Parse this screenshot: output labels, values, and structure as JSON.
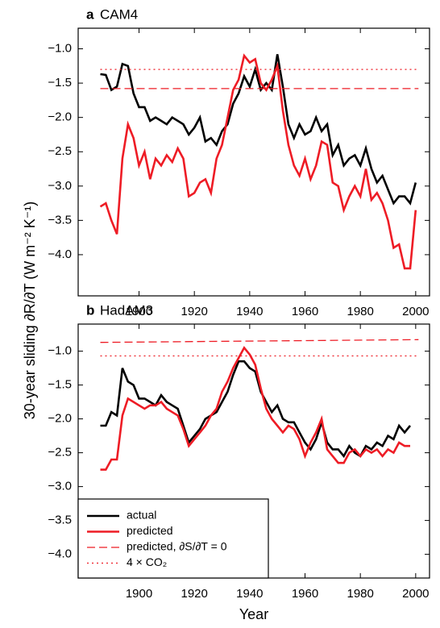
{
  "ylabel": "30-year sliding ∂R/∂T (W m⁻² K⁻¹)",
  "chart_data": [
    {
      "type": "line",
      "panel": "a",
      "title": "CAM4",
      "xlim": [
        1878,
        2005
      ],
      "xticks": [
        1900,
        1920,
        1940,
        1960,
        1980,
        2000
      ],
      "ylim": [
        -4.6,
        -0.7
      ],
      "yticks": [
        {
          "value": -1.0,
          "label": "−1.0"
        },
        {
          "value": -1.5,
          "label": "−1.5"
        },
        {
          "value": -2.0,
          "label": "−2.0"
        },
        {
          "value": -2.5,
          "label": "−2.5"
        },
        {
          "value": -3.0,
          "label": "−3.0"
        },
        {
          "value": -3.5,
          "label": "−3.5"
        },
        {
          "value": -4.0,
          "label": "−4.0"
        }
      ],
      "x": [
        1886,
        1888,
        1890,
        1892,
        1894,
        1896,
        1898,
        1900,
        1902,
        1904,
        1906,
        1908,
        1910,
        1912,
        1914,
        1916,
        1918,
        1920,
        1922,
        1924,
        1926,
        1928,
        1930,
        1932,
        1934,
        1936,
        1938,
        1940,
        1942,
        1944,
        1946,
        1948,
        1950,
        1952,
        1954,
        1956,
        1958,
        1960,
        1962,
        1964,
        1966,
        1968,
        1970,
        1972,
        1974,
        1976,
        1978,
        1980,
        1982,
        1984,
        1986,
        1988,
        1990,
        1992,
        1994,
        1996,
        1998,
        2000
      ],
      "series": [
        {
          "color": "#000000",
          "style": "solid",
          "values": [
            -1.37,
            -1.38,
            -1.6,
            -1.55,
            -1.22,
            -1.25,
            -1.65,
            -1.85,
            -1.85,
            -2.05,
            -2.0,
            -2.05,
            -2.1,
            -2.0,
            -2.05,
            -2.1,
            -2.25,
            -2.15,
            -2.0,
            -2.35,
            -2.3,
            -2.4,
            -2.2,
            -2.1,
            -1.8,
            -1.65,
            -1.4,
            -1.55,
            -1.3,
            -1.6,
            -1.5,
            -1.6,
            -1.08,
            -1.55,
            -2.1,
            -2.3,
            -2.1,
            -2.25,
            -2.2,
            -2.0,
            -2.2,
            -2.1,
            -2.55,
            -2.4,
            -2.7,
            -2.6,
            -2.55,
            -2.7,
            -2.45,
            -2.75,
            -2.95,
            -2.85,
            -3.05,
            -3.25,
            -3.15,
            -3.15,
            -3.25,
            -2.95
          ]
        },
        {
          "color": "#ee1c25",
          "style": "solid",
          "values": [
            -3.3,
            -3.25,
            -3.5,
            -3.7,
            -2.6,
            -2.1,
            -2.3,
            -2.7,
            -2.5,
            -2.9,
            -2.6,
            -2.7,
            -2.55,
            -2.65,
            -2.45,
            -2.6,
            -3.15,
            -3.1,
            -2.95,
            -2.9,
            -3.1,
            -2.6,
            -2.4,
            -2.0,
            -1.6,
            -1.45,
            -1.1,
            -1.2,
            -1.15,
            -1.5,
            -1.6,
            -1.45,
            -1.25,
            -1.9,
            -2.4,
            -2.7,
            -2.85,
            -2.6,
            -2.9,
            -2.7,
            -2.35,
            -2.4,
            -2.95,
            -3.0,
            -3.35,
            -3.15,
            -3.0,
            -3.15,
            -2.75,
            -3.2,
            -3.1,
            -3.25,
            -3.5,
            -3.9,
            -3.85,
            -4.2,
            -4.2,
            -3.35
          ]
        },
        {
          "color": "#ee1c25",
          "style": "dashed",
          "x": [
            1886,
            2001
          ],
          "values": [
            -1.58,
            -1.58
          ]
        },
        {
          "color": "#ee1c25",
          "style": "dotted",
          "x": [
            1886,
            2001
          ],
          "values": [
            -1.3,
            -1.3
          ]
        }
      ]
    },
    {
      "type": "line",
      "panel": "b",
      "title": "HadAM3",
      "xlabel": "Year",
      "xlim": [
        1878,
        2005
      ],
      "xticks": [
        1900,
        1920,
        1940,
        1960,
        1980,
        2000
      ],
      "ylim": [
        -4.35,
        -0.6
      ],
      "yticks": [
        {
          "value": -1.0,
          "label": "−1.0"
        },
        {
          "value": -1.5,
          "label": "−1.5"
        },
        {
          "value": -2.0,
          "label": "−2.0"
        },
        {
          "value": -2.5,
          "label": "−2.5"
        },
        {
          "value": -3.0,
          "label": "−3.0"
        },
        {
          "value": -3.5,
          "label": "−3.5"
        },
        {
          "value": -4.0,
          "label": "−4.0"
        }
      ],
      "legend": "lower left",
      "x": [
        1886,
        1888,
        1890,
        1892,
        1894,
        1896,
        1898,
        1900,
        1902,
        1904,
        1906,
        1908,
        1910,
        1912,
        1914,
        1916,
        1918,
        1920,
        1922,
        1924,
        1926,
        1928,
        1930,
        1932,
        1934,
        1936,
        1938,
        1940,
        1942,
        1944,
        1946,
        1948,
        1950,
        1952,
        1954,
        1956,
        1958,
        1960,
        1962,
        1964,
        1966,
        1968,
        1970,
        1972,
        1974,
        1976,
        1978,
        1980,
        1982,
        1984,
        1986,
        1988,
        1990,
        1992,
        1994,
        1996,
        1998
      ],
      "series": [
        {
          "name": "actual",
          "color": "#000000",
          "style": "solid",
          "values": [
            -2.1,
            -2.1,
            -1.9,
            -1.95,
            -1.25,
            -1.45,
            -1.5,
            -1.7,
            -1.7,
            -1.75,
            -1.8,
            -1.65,
            -1.75,
            -1.8,
            -1.85,
            -2.1,
            -2.35,
            -2.25,
            -2.15,
            -2.0,
            -1.95,
            -1.9,
            -1.75,
            -1.6,
            -1.35,
            -1.15,
            -1.15,
            -1.25,
            -1.3,
            -1.6,
            -1.75,
            -1.9,
            -1.8,
            -2.0,
            -2.05,
            -2.05,
            -2.2,
            -2.35,
            -2.45,
            -2.3,
            -2.05,
            -2.35,
            -2.45,
            -2.45,
            -2.55,
            -2.4,
            -2.5,
            -2.55,
            -2.4,
            -2.45,
            -2.35,
            -2.4,
            -2.25,
            -2.3,
            -2.1,
            -2.2,
            -2.1
          ]
        },
        {
          "name": "predicted",
          "color": "#ee1c25",
          "style": "solid",
          "values": [
            -2.75,
            -2.75,
            -2.6,
            -2.6,
            -1.95,
            -1.7,
            -1.75,
            -1.8,
            -1.85,
            -1.8,
            -1.8,
            -1.75,
            -1.85,
            -1.9,
            -1.95,
            -2.15,
            -2.4,
            -2.3,
            -2.2,
            -2.1,
            -1.95,
            -1.85,
            -1.6,
            -1.45,
            -1.25,
            -1.1,
            -0.95,
            -1.05,
            -1.2,
            -1.55,
            -1.85,
            -2.0,
            -2.1,
            -2.2,
            -2.1,
            -2.15,
            -2.3,
            -2.55,
            -2.35,
            -2.2,
            -2.0,
            -2.45,
            -2.55,
            -2.65,
            -2.65,
            -2.5,
            -2.45,
            -2.55,
            -2.45,
            -2.5,
            -2.45,
            -2.55,
            -2.45,
            -2.5,
            -2.35,
            -2.4,
            -2.4
          ]
        },
        {
          "name": "predicted, ∂S/∂T = 0",
          "color": "#ee1c25",
          "style": "dashed",
          "x": [
            1886,
            2001
          ],
          "values": [
            -0.87,
            -0.83
          ]
        },
        {
          "name": "4 × CO₂",
          "color": "#ee1c25",
          "style": "dotted",
          "x": [
            1886,
            2001
          ],
          "values": [
            -1.07,
            -1.07
          ]
        }
      ]
    }
  ]
}
